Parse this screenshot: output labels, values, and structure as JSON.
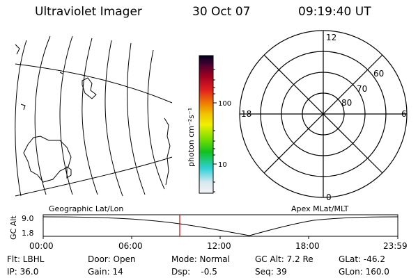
{
  "header": {
    "instrument": "Ultraviolet Imager",
    "date": "30 Oct 07",
    "time": "09:19:40 UT"
  },
  "colorbar": {
    "units_label": "photon cm⁻²s⁻¹",
    "tick_labels": [
      "100",
      "10"
    ]
  },
  "polar_plot": {
    "mlt_labels": {
      "top": "12",
      "left": "18",
      "right": "6",
      "bottom": "0"
    },
    "mlat_labels": [
      "60",
      "70",
      "80"
    ]
  },
  "panel_labels": {
    "left": "Geographic Lat/Lon",
    "right": "Apex MLat/MLT"
  },
  "orbit_plot": {
    "axis_label": "GC Alt",
    "y_tick_labels": [
      "9.0",
      "1.8"
    ],
    "x_tick_labels": [
      "00:00",
      "06:00",
      "12:00",
      "18:00",
      "23:59"
    ]
  },
  "info": {
    "filter": "Flt: LBHL",
    "door": "Door: Open",
    "mode": "Mode: Normal",
    "gc_alt": "GC Alt: 7.2 Re",
    "glat": "GLat: -46.2",
    "ip": "IP: 36.0",
    "gain": "Gain: 14",
    "dsp": "Dsp:    -0.5",
    "seq": "Seq: 39",
    "glon": "GLon: 160.0"
  },
  "colors": {
    "current_time_marker": "#e00000",
    "lines": "#000000"
  }
}
